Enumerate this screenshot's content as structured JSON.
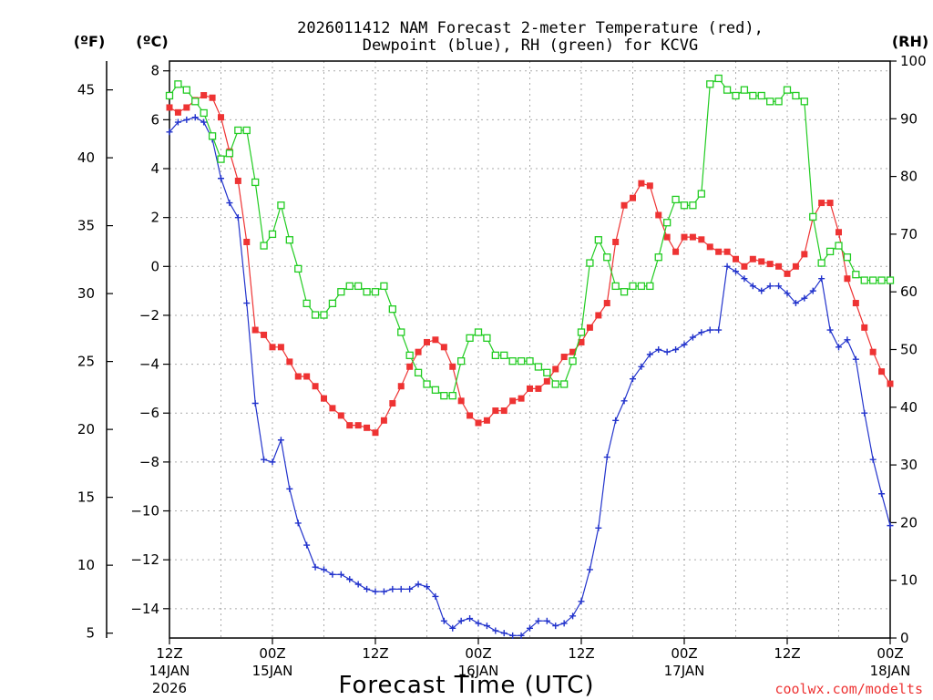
{
  "chart_data": {
    "type": "line",
    "title_line1": "2026011412 NAM Forecast 2-meter Temperature (red),",
    "title_line2": "Dewpoint (blue), RH (green) for KCVG",
    "xlabel": "Forecast Time (UTC)",
    "credit": "coolwx.com/modelts",
    "unit_fahrenheit": "(ºF)",
    "unit_celsius": "(ºC)",
    "unit_rh": "(RH)",
    "colors": {
      "temperature": "#ee3333",
      "dewpoint": "#2233cc",
      "rh": "#22cc22",
      "grid": "#aaaaaa"
    },
    "xlim_hours": [
      0,
      84
    ],
    "ylim_celsius": [
      -15.2,
      8.4
    ],
    "ylim_rh": [
      0,
      100
    ],
    "x_ticks": [
      {
        "hour": 0,
        "l1": "12Z",
        "l2": "14JAN",
        "l3": "2026"
      },
      {
        "hour": 12,
        "l1": "00Z",
        "l2": "15JAN",
        "l3": ""
      },
      {
        "hour": 24,
        "l1": "12Z",
        "l2": "",
        "l3": ""
      },
      {
        "hour": 36,
        "l1": "00Z",
        "l2": "16JAN",
        "l3": ""
      },
      {
        "hour": 48,
        "l1": "12Z",
        "l2": "",
        "l3": ""
      },
      {
        "hour": 60,
        "l1": "00Z",
        "l2": "17JAN",
        "l3": ""
      },
      {
        "hour": 72,
        "l1": "12Z",
        "l2": "",
        "l3": ""
      },
      {
        "hour": 84,
        "l1": "00Z",
        "l2": "18JAN",
        "l3": ""
      }
    ],
    "celsius_ticks": [
      "8",
      "6",
      "4",
      "2",
      "0",
      "−2",
      "−4",
      "−6",
      "−8",
      "−10",
      "−12",
      "−14"
    ],
    "celsius_tick_values": [
      8,
      6,
      4,
      2,
      0,
      -2,
      -4,
      -6,
      -8,
      -10,
      -12,
      -14
    ],
    "fahrenheit_ticks": [
      "45",
      "40",
      "35",
      "30",
      "25",
      "20",
      "15",
      "10",
      "5"
    ],
    "fahrenheit_tick_values": [
      45,
      40,
      35,
      30,
      25,
      20,
      15,
      10,
      5
    ],
    "rh_ticks": [
      "100",
      "90",
      "80",
      "70",
      "60",
      "50",
      "40",
      "30",
      "20",
      "10",
      "0"
    ],
    "rh_tick_values": [
      100,
      90,
      80,
      70,
      60,
      50,
      40,
      30,
      20,
      10,
      0
    ],
    "hours": [
      0,
      1,
      2,
      3,
      4,
      5,
      6,
      7,
      8,
      9,
      10,
      11,
      12,
      13,
      14,
      15,
      16,
      17,
      18,
      19,
      20,
      21,
      22,
      23,
      24,
      25,
      26,
      27,
      28,
      29,
      30,
      31,
      32,
      33,
      34,
      35,
      36,
      37,
      38,
      39,
      40,
      41,
      42,
      43,
      44,
      45,
      46,
      47,
      48,
      49,
      50,
      51,
      52,
      53,
      54,
      55,
      56,
      57,
      58,
      59,
      60,
      61,
      62,
      63,
      64,
      65,
      66,
      67,
      68,
      69,
      70,
      71,
      72,
      73,
      74,
      75,
      76,
      77,
      78,
      79,
      80,
      81,
      82,
      83,
      84
    ],
    "series": [
      {
        "name": "Temperature (°C)",
        "color": "#ee3333",
        "marker": "filled-square",
        "axis": "celsius",
        "values": [
          6.5,
          6.3,
          6.5,
          6.8,
          7.0,
          6.9,
          6.1,
          4.7,
          3.5,
          1.0,
          -2.6,
          -2.8,
          -3.3,
          -3.3,
          -3.9,
          -4.5,
          -4.5,
          -4.9,
          -5.4,
          -5.8,
          -6.1,
          -6.5,
          -6.5,
          -6.6,
          -6.8,
          -6.3,
          -5.6,
          -4.9,
          -4.1,
          -3.5,
          -3.1,
          -3.0,
          -3.3,
          -4.1,
          -5.5,
          -6.1,
          -6.4,
          -6.3,
          -5.9,
          -5.9,
          -5.5,
          -5.4,
          -5.0,
          -5.0,
          -4.7,
          -4.2,
          -3.7,
          -3.5,
          -3.1,
          -2.5,
          -2.0,
          -1.5,
          1.0,
          2.5,
          2.8,
          3.4,
          3.3,
          2.1,
          1.2,
          0.6,
          1.2,
          1.2,
          1.1,
          0.8,
          0.6,
          0.6,
          0.3,
          0.0,
          0.3,
          0.2,
          0.1,
          0.0,
          -0.3,
          0.0,
          0.5,
          2.0,
          2.6,
          2.6,
          1.4,
          -0.5,
          -1.5,
          -2.5,
          -3.5,
          -4.3,
          -4.8
        ]
      },
      {
        "name": "Dewpoint (°C)",
        "color": "#2233cc",
        "marker": "plus",
        "axis": "celsius",
        "values": [
          5.5,
          5.9,
          6.0,
          6.1,
          5.9,
          5.2,
          3.6,
          2.6,
          2.0,
          -1.5,
          -5.6,
          -7.9,
          -8.0,
          -7.1,
          -9.1,
          -10.5,
          -11.4,
          -12.3,
          -12.4,
          -12.6,
          -12.6,
          -12.8,
          -13.0,
          -13.2,
          -13.3,
          -13.3,
          -13.2,
          -13.2,
          -13.2,
          -13.0,
          -13.1,
          -13.5,
          -14.5,
          -14.8,
          -14.5,
          -14.4,
          -14.6,
          -14.7,
          -14.9,
          -15.0,
          -15.1,
          -15.1,
          -14.8,
          -14.5,
          -14.5,
          -14.7,
          -14.6,
          -14.3,
          -13.7,
          -12.4,
          -10.7,
          -7.8,
          -6.3,
          -5.5,
          -4.6,
          -4.1,
          -3.6,
          -3.4,
          -3.5,
          -3.4,
          -3.2,
          -2.9,
          -2.7,
          -2.6,
          -2.6,
          0.0,
          -0.2,
          -0.5,
          -0.8,
          -1.0,
          -0.8,
          -0.8,
          -1.1,
          -1.5,
          -1.3,
          -1.0,
          -0.5,
          -2.6,
          -3.3,
          -3.0,
          -3.8,
          -6.0,
          -7.9,
          -9.3,
          -10.6
        ]
      },
      {
        "name": "RH (%)",
        "color": "#22cc22",
        "marker": "open-square",
        "axis": "rh",
        "values": [
          94,
          96,
          95,
          93,
          91,
          87,
          83,
          84,
          88,
          88,
          79,
          68,
          70,
          75,
          69,
          64,
          58,
          56,
          56,
          58,
          60,
          61,
          61,
          60,
          60,
          61,
          57,
          53,
          49,
          46,
          44,
          43,
          42,
          42,
          48,
          52,
          53,
          52,
          49,
          49,
          48,
          48,
          48,
          47,
          46,
          44,
          44,
          48,
          53,
          65,
          69,
          66,
          61,
          60,
          61,
          61,
          61,
          66,
          72,
          76,
          75,
          75,
          77,
          96,
          97,
          95,
          94,
          95,
          94,
          94,
          93,
          93,
          95,
          94,
          93,
          73,
          65,
          67,
          68,
          66,
          63,
          62,
          62,
          62,
          62
        ]
      }
    ]
  }
}
